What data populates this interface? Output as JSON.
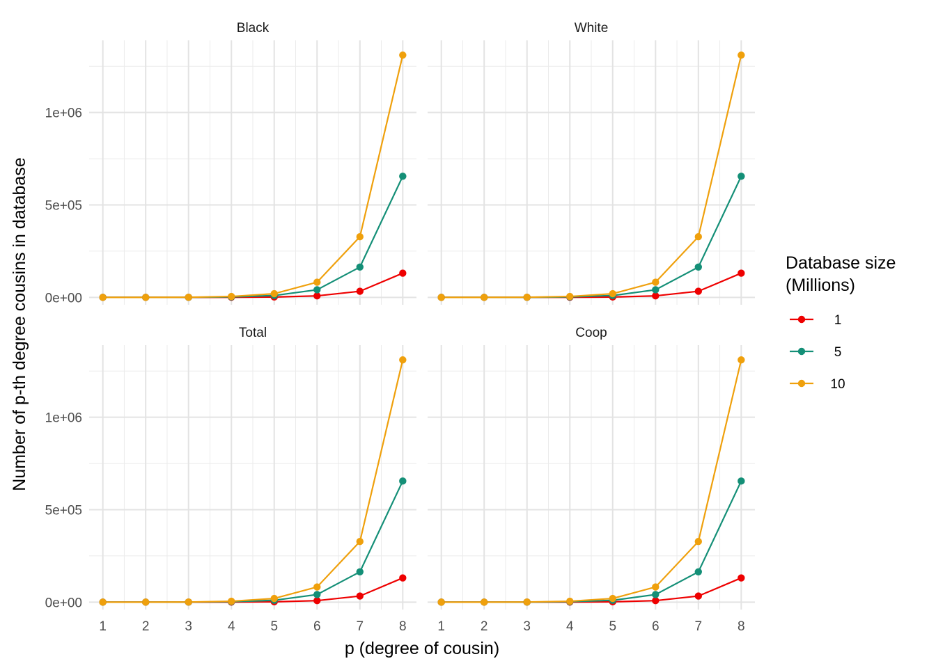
{
  "chart_data": {
    "type": "line",
    "xlabel": "p (degree of cousin)",
    "ylabel": "Number of p-th degree cousins in database",
    "x": [
      1,
      2,
      3,
      4,
      5,
      6,
      7,
      8
    ],
    "ylim": [
      -40000,
      1390000
    ],
    "y_ticks": [
      0,
      500000,
      1000000
    ],
    "y_tick_labels": [
      "0e+00",
      "5e+05",
      "1e+06"
    ],
    "legend": {
      "title_line1": "Database size",
      "title_line2": "(Millions)",
      "placement": "right"
    },
    "series_style": [
      {
        "name": "1",
        "color": "#ee0000"
      },
      {
        "name": "5",
        "color": "#148f77"
      },
      {
        "name": "10",
        "color": "#efa00c"
      }
    ],
    "panels": [
      {
        "title": "Black",
        "series": [
          {
            "name": "1",
            "values": [
              0,
              0,
              100,
              500,
              2000,
              8200,
              33000,
              131000
            ]
          },
          {
            "name": "5",
            "values": [
              0,
              0,
              300,
              2500,
              10000,
              41000,
              164000,
              655000
            ]
          },
          {
            "name": "10",
            "values": [
              0,
              0,
              700,
              5000,
              20000,
              82000,
              328000,
              1310000
            ]
          }
        ]
      },
      {
        "title": "White",
        "series": [
          {
            "name": "1",
            "values": [
              0,
              0,
              100,
              500,
              2000,
              8200,
              33000,
              131000
            ]
          },
          {
            "name": "5",
            "values": [
              0,
              0,
              300,
              2500,
              10000,
              41000,
              164000,
              655000
            ]
          },
          {
            "name": "10",
            "values": [
              0,
              0,
              700,
              5000,
              20000,
              82000,
              328000,
              1310000
            ]
          }
        ]
      },
      {
        "title": "Total",
        "series": [
          {
            "name": "1",
            "values": [
              0,
              0,
              100,
              500,
              2000,
              8200,
              33000,
              131000
            ]
          },
          {
            "name": "5",
            "values": [
              0,
              0,
              300,
              2500,
              10000,
              41000,
              164000,
              655000
            ]
          },
          {
            "name": "10",
            "values": [
              0,
              0,
              700,
              5000,
              20000,
              82000,
              328000,
              1310000
            ]
          }
        ]
      },
      {
        "title": "Coop",
        "series": [
          {
            "name": "1",
            "values": [
              0,
              0,
              100,
              500,
              2000,
              8200,
              33000,
              131000
            ]
          },
          {
            "name": "5",
            "values": [
              0,
              0,
              300,
              2500,
              10000,
              41000,
              164000,
              655000
            ]
          },
          {
            "name": "10",
            "values": [
              0,
              0,
              700,
              5000,
              20000,
              82000,
              328000,
              1310000
            ]
          }
        ]
      }
    ]
  }
}
